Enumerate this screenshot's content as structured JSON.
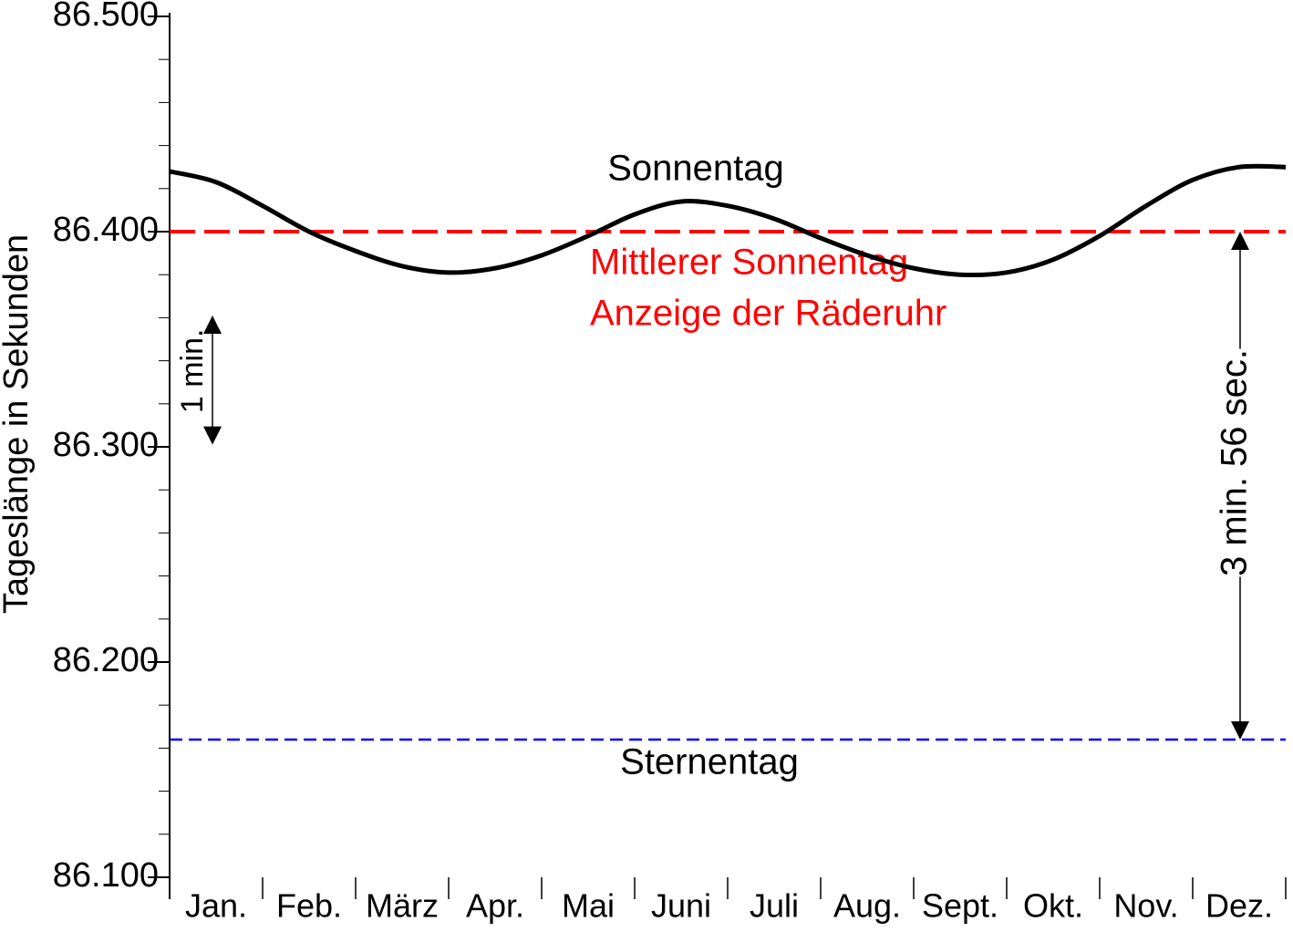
{
  "chart_data": {
    "type": "line",
    "ylabel": "Tageslänge in Sekunden",
    "categories": [
      "Jan.",
      "Feb.",
      "März",
      "Apr.",
      "Mai",
      "Juni",
      "Juli",
      "Aug.",
      "Sept.",
      "Okt.",
      "Nov.",
      "Dez."
    ],
    "xlim": [
      0,
      12
    ],
    "x": [
      0,
      0.5,
      1,
      1.5,
      2,
      2.5,
      3,
      3.5,
      4,
      4.5,
      5,
      5.5,
      6,
      6.5,
      7,
      7.5,
      8,
      8.5,
      9,
      9.5,
      10,
      10.5,
      11,
      11.5,
      12
    ],
    "series": [
      {
        "name": "Sonnentag",
        "color": "#000000",
        "values": [
          86428,
          86423,
          86412,
          86400,
          86391,
          86384,
          86381,
          86383,
          86389,
          86398,
          86408,
          86414,
          86412,
          86406,
          86397,
          86389,
          86383,
          86380,
          86381,
          86387,
          86398,
          86412,
          86424,
          86430,
          86430
        ]
      }
    ],
    "hlines": [
      {
        "labels": [
          "Mittlerer Sonnentag",
          "Anzeige der Räderuhr"
        ],
        "value": 86400,
        "color": "#ff0000"
      },
      {
        "labels": [
          "Sternentag"
        ],
        "value": 86164,
        "color": "#0000ff"
      }
    ],
    "arrows": [
      {
        "label": "1 min.",
        "from": 86361,
        "to": 86301
      },
      {
        "label": "3 min. 56 sec.",
        "from": 86400,
        "to": 86164
      }
    ],
    "ylim": [
      86100,
      86500
    ],
    "yticks": [
      {
        "value": 86100,
        "label": "86.100"
      },
      {
        "value": 86200,
        "label": "86.200"
      },
      {
        "value": 86300,
        "label": "86.300"
      },
      {
        "value": 86400,
        "label": "86.400"
      },
      {
        "value": 86500,
        "label": "86.500"
      }
    ],
    "minor_yticks": [
      86120,
      86140,
      86160,
      86180,
      86220,
      86240,
      86260,
      86280,
      86320,
      86340,
      86360,
      86380,
      86420,
      86440,
      86460,
      86480
    ]
  }
}
